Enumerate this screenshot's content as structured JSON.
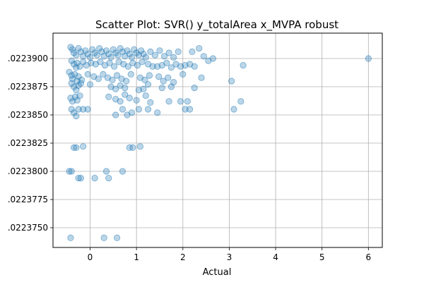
{
  "chart_data": {
    "type": "scatter",
    "title": "Scatter Plot: SVR() y_totalArea x_MVPA robust",
    "xlabel": "Actual",
    "ylabel": "",
    "xlim": [
      -0.8,
      6.3
    ],
    "ylim": [
      1.02237325,
      1.02239225
    ],
    "grid": true,
    "x_ticks": [
      0,
      1,
      2,
      3,
      4,
      5,
      6
    ],
    "x_tick_labels": [
      "0",
      "1",
      "2",
      "3",
      "4",
      "5",
      "6"
    ],
    "y_ticks": [
      1.022375,
      1.0223775,
      1.02238,
      1.0223825,
      1.022385,
      1.0223875,
      1.02239
    ],
    "y_tick_labels": [
      ".0223750",
      ".0223775",
      ".0223800",
      ".0223825",
      ".0223850",
      ".0223875",
      ".0223900"
    ],
    "marker_color": "#1f77b4",
    "marker_alpha": 0.3,
    "points": [
      [
        -0.42,
        1.022391
      ],
      [
        -0.38,
        1.0223908
      ],
      [
        -0.35,
        1.0223905
      ],
      [
        -0.3,
        1.0223903
      ],
      [
        -0.25,
        1.0223909
      ],
      [
        -0.2,
        1.0223906
      ],
      [
        -0.15,
        1.0223902
      ],
      [
        -0.1,
        1.0223907
      ],
      [
        -0.05,
        1.0223904
      ],
      [
        0.0,
        1.0223901
      ],
      [
        0.05,
        1.0223908
      ],
      [
        0.1,
        1.0223905
      ],
      [
        0.15,
        1.0223903
      ],
      [
        0.2,
        1.0223909
      ],
      [
        0.25,
        1.0223906
      ],
      [
        0.3,
        1.0223902
      ],
      [
        0.35,
        1.0223907
      ],
      [
        0.4,
        1.0223904
      ],
      [
        0.45,
        1.0223901
      ],
      [
        0.5,
        1.0223908
      ],
      [
        0.55,
        1.0223905
      ],
      [
        0.6,
        1.0223903
      ],
      [
        0.65,
        1.0223909
      ],
      [
        0.7,
        1.0223906
      ],
      [
        0.75,
        1.0223902
      ],
      [
        0.8,
        1.0223907
      ],
      [
        0.85,
        1.0223904
      ],
      [
        0.9,
        1.0223901
      ],
      [
        0.95,
        1.0223908
      ],
      [
        1.0,
        1.0223905
      ],
      [
        1.05,
        1.0223903
      ],
      [
        1.1,
        1.0223907
      ],
      [
        1.15,
        1.0223904
      ],
      [
        1.2,
        1.0223901
      ],
      [
        1.3,
        1.0223906
      ],
      [
        1.4,
        1.0223903
      ],
      [
        1.5,
        1.0223907
      ],
      [
        1.6,
        1.0223902
      ],
      [
        1.7,
        1.0223905
      ],
      [
        1.8,
        1.0223901
      ],
      [
        1.9,
        1.0223906
      ],
      [
        2.2,
        1.0223906
      ],
      [
        2.35,
        1.0223909
      ],
      [
        2.45,
        1.0223902
      ],
      [
        2.55,
        1.0223898
      ],
      [
        2.65,
        1.02239
      ],
      [
        6.0,
        1.02239
      ],
      [
        3.3,
        1.0223894
      ],
      [
        3.05,
        1.022388
      ],
      [
        2.4,
        1.0223883
      ],
      [
        -0.4,
        1.0223898
      ],
      [
        -0.35,
        1.0223895
      ],
      [
        -0.3,
        1.0223892
      ],
      [
        -0.28,
        1.0223896
      ],
      [
        -0.22,
        1.0223893
      ],
      [
        -0.15,
        1.0223897
      ],
      [
        -0.08,
        1.0223894
      ],
      [
        0.02,
        1.0223896
      ],
      [
        0.12,
        1.0223895
      ],
      [
        0.22,
        1.0223897
      ],
      [
        0.32,
        1.0223894
      ],
      [
        0.42,
        1.0223896
      ],
      [
        0.52,
        1.0223893
      ],
      [
        0.62,
        1.0223897
      ],
      [
        0.72,
        1.0223895
      ],
      [
        0.82,
        1.0223893
      ],
      [
        0.92,
        1.0223896
      ],
      [
        1.02,
        1.0223894
      ],
      [
        1.12,
        1.0223897
      ],
      [
        1.25,
        1.0223895
      ],
      [
        1.35,
        1.0223893
      ],
      [
        1.45,
        1.0223893
      ],
      [
        1.55,
        1.0223894
      ],
      [
        1.65,
        1.0223896
      ],
      [
        1.75,
        1.0223892
      ],
      [
        1.85,
        1.0223895
      ],
      [
        1.95,
        1.0223893
      ],
      [
        2.05,
        1.0223894
      ],
      [
        2.15,
        1.0223895
      ],
      [
        2.25,
        1.0223893
      ],
      [
        -0.45,
        1.0223888
      ],
      [
        -0.4,
        1.0223885
      ],
      [
        -0.38,
        1.0223882
      ],
      [
        -0.33,
        1.0223886
      ],
      [
        -0.28,
        1.022388
      ],
      [
        -0.25,
        1.0223884
      ],
      [
        -0.18,
        1.0223881
      ],
      [
        -0.05,
        1.0223886
      ],
      [
        0.08,
        1.0223884
      ],
      [
        0.18,
        1.0223882
      ],
      [
        0.28,
        1.0223886
      ],
      [
        0.38,
        1.0223883
      ],
      [
        0.48,
        1.0223881
      ],
      [
        0.58,
        1.0223885
      ],
      [
        0.68,
        1.0223882
      ],
      [
        0.78,
        1.022388
      ],
      [
        0.88,
        1.0223886
      ],
      [
        1.08,
        1.0223883
      ],
      [
        1.18,
        1.0223881
      ],
      [
        1.28,
        1.0223885
      ],
      [
        1.48,
        1.0223884
      ],
      [
        1.58,
        1.022388
      ],
      [
        1.68,
        1.0223883
      ],
      [
        1.8,
        1.0223879
      ],
      [
        2.0,
        1.0223886
      ],
      [
        2.25,
        1.0223874
      ],
      [
        -0.4,
        1.0223878
      ],
      [
        -0.35,
        1.0223875
      ],
      [
        -0.3,
        1.0223872
      ],
      [
        -0.25,
        1.0223876
      ],
      [
        -0.2,
        1.0223878
      ],
      [
        0.0,
        1.0223877
      ],
      [
        0.45,
        1.0223875
      ],
      [
        0.55,
        1.0223873
      ],
      [
        0.65,
        1.0223876
      ],
      [
        0.75,
        1.0223874
      ],
      [
        1.05,
        1.0223872
      ],
      [
        1.15,
        1.0223873
      ],
      [
        1.25,
        1.0223877
      ],
      [
        1.55,
        1.0223874
      ],
      [
        1.75,
        1.0223875
      ],
      [
        -0.42,
        1.0223865
      ],
      [
        -0.38,
        1.0223862
      ],
      [
        -0.32,
        1.0223866
      ],
      [
        -0.28,
        1.0223863
      ],
      [
        -0.22,
        1.0223867
      ],
      [
        0.4,
        1.0223866
      ],
      [
        0.55,
        1.0223864
      ],
      [
        0.65,
        1.0223862
      ],
      [
        0.75,
        1.0223868
      ],
      [
        0.85,
        1.0223865
      ],
      [
        1.0,
        1.0223863
      ],
      [
        1.2,
        1.0223867
      ],
      [
        1.3,
        1.0223861
      ],
      [
        1.7,
        1.0223862
      ],
      [
        1.95,
        1.0223862
      ],
      [
        2.1,
        1.0223862
      ],
      [
        3.25,
        1.0223862
      ],
      [
        -0.4,
        1.0223855
      ],
      [
        -0.35,
        1.0223852
      ],
      [
        -0.3,
        1.0223849
      ],
      [
        -0.25,
        1.0223855
      ],
      [
        -0.15,
        1.0223855
      ],
      [
        -0.05,
        1.0223855
      ],
      [
        0.55,
        1.022385
      ],
      [
        0.7,
        1.0223855
      ],
      [
        0.8,
        1.022385
      ],
      [
        0.9,
        1.0223852
      ],
      [
        1.05,
        1.0223855
      ],
      [
        1.25,
        1.0223855
      ],
      [
        1.45,
        1.0223852
      ],
      [
        2.05,
        1.0223855
      ],
      [
        2.15,
        1.0223855
      ],
      [
        3.1,
        1.0223855
      ],
      [
        -0.35,
        1.0223821
      ],
      [
        -0.3,
        1.0223821
      ],
      [
        -0.15,
        1.0223822
      ],
      [
        0.85,
        1.0223821
      ],
      [
        0.92,
        1.0223821
      ],
      [
        1.08,
        1.0223822
      ],
      [
        -0.45,
        1.02238
      ],
      [
        -0.4,
        1.02238
      ],
      [
        0.35,
        1.02238
      ],
      [
        0.7,
        1.02238
      ],
      [
        -0.25,
        1.0223794
      ],
      [
        -0.2,
        1.0223794
      ],
      [
        0.1,
        1.0223794
      ],
      [
        0.4,
        1.0223794
      ],
      [
        -0.42,
        1.0223741
      ],
      [
        0.3,
        1.0223741
      ],
      [
        0.58,
        1.0223741
      ]
    ]
  }
}
